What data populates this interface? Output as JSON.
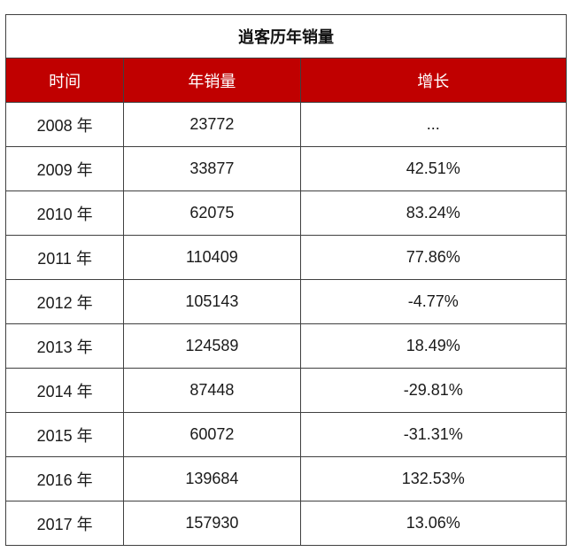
{
  "chart_data": {
    "type": "table",
    "title": "逍客历年销量",
    "columns": [
      "时间",
      "年销量",
      "增长"
    ],
    "rows": [
      {
        "year": "2008 年",
        "sales": "23772",
        "growth": "..."
      },
      {
        "year": "2009 年",
        "sales": "33877",
        "growth": "42.51%"
      },
      {
        "year": "2010 年",
        "sales": "62075",
        "growth": "83.24%"
      },
      {
        "year": "2011 年",
        "sales": "110409",
        "growth": "77.86%"
      },
      {
        "year": "2012 年",
        "sales": "105143",
        "growth": "-4.77%"
      },
      {
        "year": "2013 年",
        "sales": "124589",
        "growth": "18.49%"
      },
      {
        "year": "2014 年",
        "sales": "87448",
        "growth": "-29.81%"
      },
      {
        "year": "2015 年",
        "sales": "60072",
        "growth": "-31.31%"
      },
      {
        "year": "2016 年",
        "sales": "139684",
        "growth": "132.53%"
      },
      {
        "year": "2017 年",
        "sales": "157930",
        "growth": "13.06%"
      }
    ]
  },
  "colors": {
    "header_bg": "#c00000",
    "header_text": "#ffffff",
    "border": "#404040"
  }
}
